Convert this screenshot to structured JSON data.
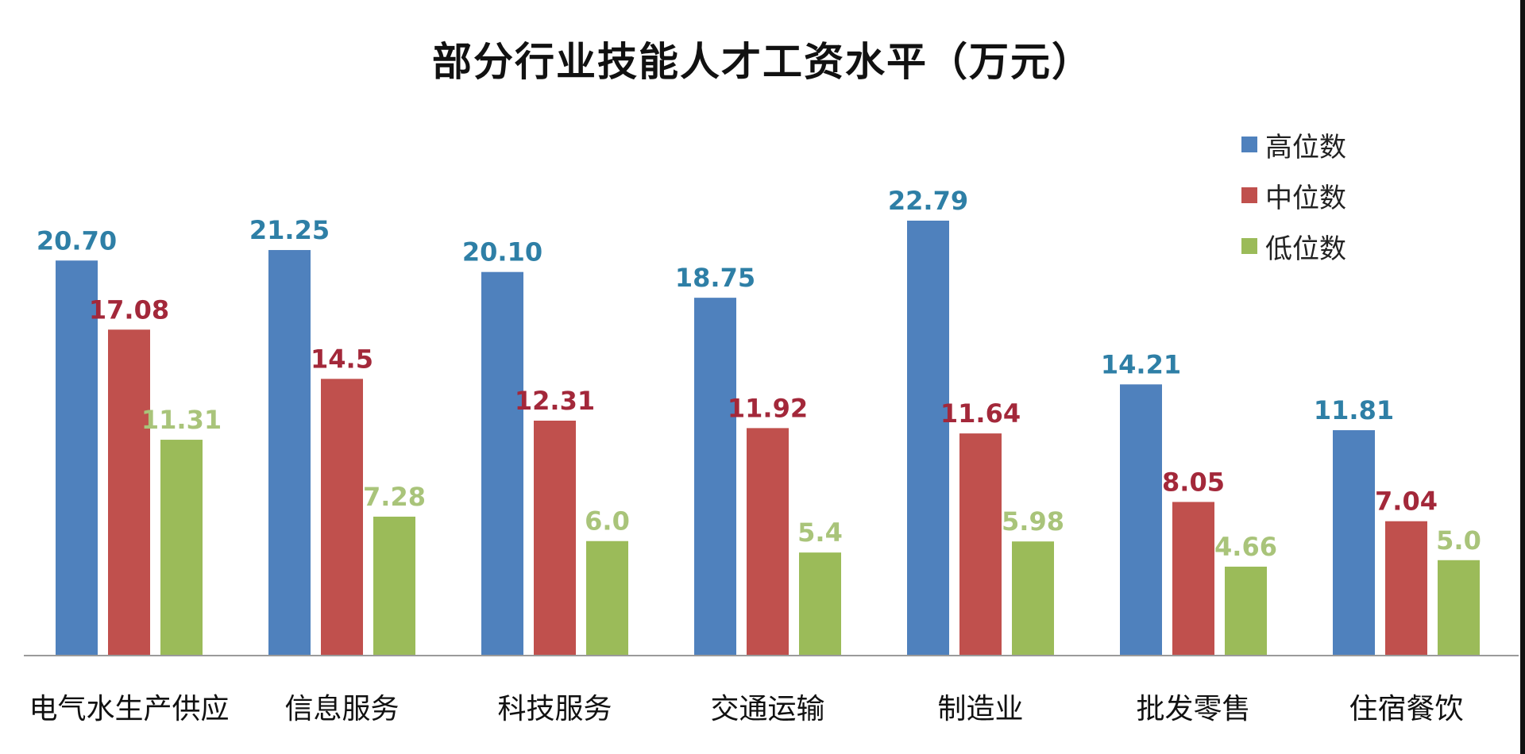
{
  "title": "部分行业技能人才工资水平（万元）",
  "colors": {
    "high": "#4f81bd",
    "median": "#c0504d",
    "low": "#9bbb59",
    "label_high": "#2e7fa6",
    "label_median": "#a3283a",
    "label_low": "#a9c47a"
  },
  "legend": [
    {
      "label": "高位数",
      "color": "#4f81bd"
    },
    {
      "label": "中位数",
      "color": "#c0504d"
    },
    {
      "label": "低位数",
      "color": "#9bbb59"
    }
  ],
  "chart_data": {
    "type": "bar",
    "title": "部分行业技能人才工资水平（万元）",
    "categories": [
      "电气水生产供应",
      "信息服务",
      "科技服务",
      "交通运输",
      "制造业",
      "批发零售",
      "住宿餐饮"
    ],
    "series": [
      {
        "name": "高位数",
        "values": [
          20.7,
          21.25,
          20.1,
          18.75,
          22.79,
          14.21,
          11.81
        ],
        "labels": [
          "20.70",
          "21.25",
          "20.10",
          "18.75",
          "22.79",
          "14.21",
          "11.81"
        ]
      },
      {
        "name": "中位数",
        "values": [
          17.08,
          14.5,
          12.31,
          11.92,
          11.64,
          8.05,
          7.04
        ],
        "labels": [
          "17.08",
          "14.5",
          "12.31",
          "11.92",
          "11.64",
          "8.05",
          "7.04"
        ]
      },
      {
        "name": "低位数",
        "values": [
          11.31,
          7.28,
          6.0,
          5.4,
          5.98,
          4.66,
          5.0
        ],
        "labels": [
          "11.31",
          "7.28",
          "6.0",
          "5.4",
          "5.98",
          "4.66",
          "5.0"
        ]
      }
    ],
    "ylim": [
      0,
      22.79
    ],
    "grid": false,
    "legend_position": "top-right",
    "data_labels": true
  }
}
